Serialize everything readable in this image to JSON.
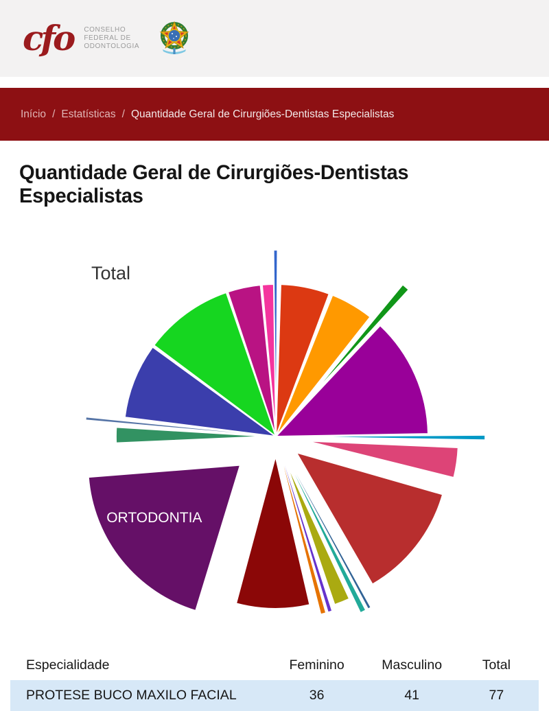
{
  "header": {
    "logo_acronym": "cfo",
    "logo_text_lines": [
      "CONSELHO",
      "FEDERAL DE",
      "ODONTOLOGIA"
    ]
  },
  "breadcrumb": {
    "separator": "/",
    "items": [
      "Início",
      "Estatísticas",
      "Quantidade Geral de Cirurgiões-Dentistas Especialistas"
    ]
  },
  "page": {
    "title": "Quantidade Geral de Cirurgiões-Dentistas Especialistas"
  },
  "chart_data": {
    "type": "pie",
    "title": "Total",
    "legend_position": "none",
    "values_labeled_on_chart": false,
    "slices": [
      {
        "label": "",
        "color": "#3366CC",
        "percent_est": 0.3,
        "start": -0.6,
        "end": 0.4,
        "offset": 0.22
      },
      {
        "label": "",
        "color": "#DC3912",
        "percent_est": 5.6,
        "start": 1.8,
        "end": 20.5,
        "offset": 0
      },
      {
        "label": "",
        "color": "#FF9900",
        "percent_est": 4.9,
        "start": 21.8,
        "end": 38.3,
        "offset": 0
      },
      {
        "label": "",
        "color": "#109618",
        "percent_est": 0.9,
        "start": 39.5,
        "end": 42.5,
        "offset": 0.3
      },
      {
        "label": "",
        "color": "#990099",
        "percent_est": 13.6,
        "start": 43.2,
        "end": 89.0,
        "offset": 0
      },
      {
        "label": "",
        "color": "#0099C6",
        "percent_est": 0.4,
        "start": 89.6,
        "end": 91.0,
        "offset": 0.37
      },
      {
        "label": "",
        "color": "#DD4477",
        "percent_est": 3.4,
        "start": 92.5,
        "end": 104.0,
        "offset": 0.2
      },
      {
        "label": "",
        "color": "#B82E2E",
        "percent_est": 13.1,
        "start": 106.0,
        "end": 150.0,
        "offset": 0.17
      },
      {
        "label": "",
        "color": "#316395",
        "percent_est": 0.2,
        "start": 151.0,
        "end": 151.8,
        "offset": 0.28
      },
      {
        "label": "",
        "color": "#22AA99",
        "percent_est": 0.5,
        "start": 152.6,
        "end": 154.4,
        "offset": 0.28
      },
      {
        "label": "",
        "color": "#AAAA11",
        "percent_est": 1.8,
        "start": 155.2,
        "end": 161.2,
        "offset": 0.17
      },
      {
        "label": "",
        "color": "#6633CC",
        "percent_est": 0.4,
        "start": 162.2,
        "end": 163.4,
        "offset": 0.2
      },
      {
        "label": "",
        "color": "#E67300",
        "percent_est": 0.5,
        "start": 164.2,
        "end": 165.8,
        "offset": 0.2
      },
      {
        "label": "",
        "color": "#8B0707",
        "percent_est": 8.3,
        "start": 167.0,
        "end": 195.0,
        "offset": 0.13
      },
      {
        "label": "ORTODONTIA",
        "color": "#651067",
        "percent_est": 20.3,
        "start": 197.0,
        "end": 265.5,
        "offset": 0.3
      },
      {
        "label": "",
        "color": "#329262",
        "percent_est": 1.8,
        "start": 267.5,
        "end": 273.5,
        "offset": 0.05
      },
      {
        "label": "",
        "color": "#5574A6",
        "percent_est": 0.2,
        "start": 275.0,
        "end": 275.8,
        "offset": 0.25
      },
      {
        "label": "",
        "color": "#3B3EAC",
        "percent_est": 8.6,
        "start": 277.2,
        "end": 306.0,
        "offset": 0
      },
      {
        "label": "",
        "color": "#16D620",
        "percent_est": 10.2,
        "start": 306.8,
        "end": 341.0,
        "offset": 0
      },
      {
        "label": "",
        "color": "#B91383",
        "percent_est": 3.7,
        "start": 341.6,
        "end": 354.2,
        "offset": 0
      },
      {
        "label": "",
        "color": "#F4359E",
        "percent_est": 1.3,
        "start": 354.8,
        "end": 359.2,
        "offset": 0
      }
    ]
  },
  "table": {
    "columns": [
      "Especialidade",
      "Feminino",
      "Masculino",
      "Total"
    ],
    "rows": [
      [
        "PROTESE BUCO MAXILO FACIAL",
        "36",
        "41",
        "77"
      ]
    ],
    "row_highlight_color": "#d7e8f7"
  },
  "colors": {
    "header_bg": "#f3f2f2",
    "breadcrumb_bg": "#8d1013",
    "logo_red": "#9b1b1e",
    "breadcrumb_link": "#e0b6b6",
    "breadcrumb_current": "#f3e9e9"
  }
}
